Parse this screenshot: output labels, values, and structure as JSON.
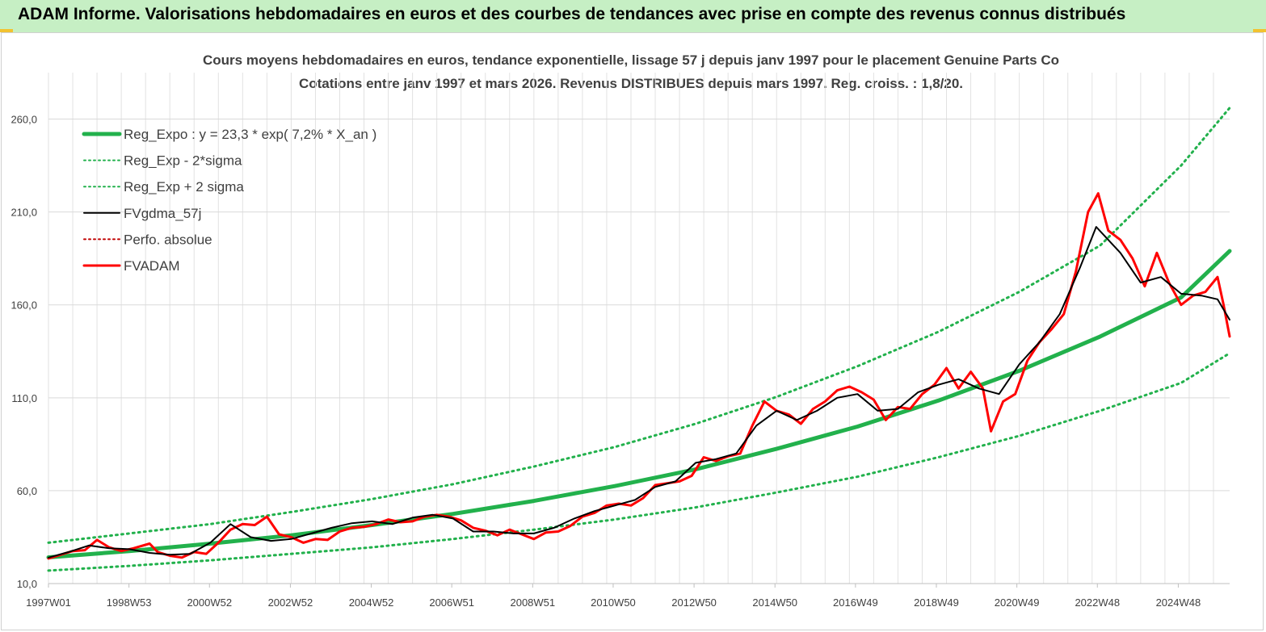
{
  "banner": {
    "title": "ADAM Informe. Valorisations hebdomadaires en euros et des courbes de tendances avec prise en compte des revenus connus distribués"
  },
  "chart_data": {
    "type": "line",
    "title": "Cours moyens hebdomadaires en euros, tendance exponentielle, lissage 57 j depuis janv 1997 pour le placement Genuine Parts Co",
    "subtitle": "Cotations entre janv 1997 et mars 2026. Revenus DISTRIBUES depuis mars 1997. Reg. croiss. : 1,8/20.",
    "x_range": [
      1997.0,
      2026.2
    ],
    "ylim": [
      10,
      285
    ],
    "y_ticks": [
      10,
      60,
      110,
      160,
      210,
      260
    ],
    "y_tick_labels": [
      "10,0",
      "60,0",
      "110,0",
      "160,0",
      "210,0",
      "260,0"
    ],
    "x_ticks": [
      {
        "x": 1997.0,
        "label": "1997W01"
      },
      {
        "x": 1998.99,
        "label": "1998W53"
      },
      {
        "x": 2000.98,
        "label": "2000W52"
      },
      {
        "x": 2002.98,
        "label": "2002W52"
      },
      {
        "x": 2004.98,
        "label": "2004W52"
      },
      {
        "x": 2006.97,
        "label": "2006W51"
      },
      {
        "x": 2008.97,
        "label": "2008W51"
      },
      {
        "x": 2010.96,
        "label": "2010W50"
      },
      {
        "x": 2012.96,
        "label": "2012W50"
      },
      {
        "x": 2014.96,
        "label": "2014W50"
      },
      {
        "x": 2016.95,
        "label": "2016W49"
      },
      {
        "x": 2018.95,
        "label": "2018W49"
      },
      {
        "x": 2020.94,
        "label": "2020W49"
      },
      {
        "x": 2022.93,
        "label": "2022W48"
      },
      {
        "x": 2024.93,
        "label": "2024W48"
      }
    ],
    "grid": true,
    "legend_position": "top-left",
    "series": [
      {
        "name": "Reg_Expo : y = 23,3 * exp( 7,2% *  X_an )",
        "style": "thick-solid",
        "color": "#22b14c",
        "points": [
          [
            1997.0,
            24.1
          ],
          [
            1999.0,
            27.5
          ],
          [
            2001.0,
            31.5
          ],
          [
            2003.0,
            36.0
          ],
          [
            2005.0,
            41.5
          ],
          [
            2007.0,
            47.5
          ],
          [
            2009.0,
            54.5
          ],
          [
            2011.0,
            62.5
          ],
          [
            2013.0,
            71.5
          ],
          [
            2015.0,
            82.5
          ],
          [
            2017.0,
            94.5
          ],
          [
            2019.0,
            108.5
          ],
          [
            2021.0,
            124.5
          ],
          [
            2023.0,
            143.0
          ],
          [
            2025.0,
            164.0
          ],
          [
            2026.2,
            189.0
          ]
        ]
      },
      {
        "name": "Reg_Exp - 2*sigma",
        "style": "dotted",
        "color": "#22b14c",
        "points": [
          [
            1997.0,
            17.0
          ],
          [
            1999.0,
            19.5
          ],
          [
            2001.0,
            22.5
          ],
          [
            2003.0,
            26.0
          ],
          [
            2005.0,
            29.5
          ],
          [
            2007.0,
            34.0
          ],
          [
            2009.0,
            39.0
          ],
          [
            2011.0,
            44.5
          ],
          [
            2013.0,
            51.0
          ],
          [
            2015.0,
            59.0
          ],
          [
            2017.0,
            67.5
          ],
          [
            2019.0,
            78.0
          ],
          [
            2021.0,
            89.5
          ],
          [
            2023.0,
            103.0
          ],
          [
            2025.0,
            118.0
          ],
          [
            2026.2,
            134.0
          ]
        ]
      },
      {
        "name": "Reg_Exp + 2 sigma",
        "style": "dotted",
        "color": "#22b14c",
        "points": [
          [
            1997.0,
            32.0
          ],
          [
            1999.0,
            37.0
          ],
          [
            2001.0,
            42.0
          ],
          [
            2003.0,
            48.5
          ],
          [
            2005.0,
            55.5
          ],
          [
            2007.0,
            63.5
          ],
          [
            2009.0,
            73.0
          ],
          [
            2011.0,
            83.5
          ],
          [
            2013.0,
            96.0
          ],
          [
            2015.0,
            110.5
          ],
          [
            2017.0,
            127.0
          ],
          [
            2019.0,
            145.5
          ],
          [
            2021.0,
            167.0
          ],
          [
            2023.0,
            192.0
          ],
          [
            2025.0,
            235.0
          ],
          [
            2026.2,
            266.0
          ]
        ]
      },
      {
        "name": "FVgdma_57j",
        "style": "solid",
        "color": "#000000",
        "points": [
          [
            1997.0,
            24.0
          ],
          [
            1997.5,
            27.0
          ],
          [
            1998.0,
            30.5
          ],
          [
            1998.5,
            29.0
          ],
          [
            1999.0,
            28.5
          ],
          [
            1999.5,
            26.5
          ],
          [
            2000.0,
            25.5
          ],
          [
            2000.5,
            26.0
          ],
          [
            2001.0,
            32.0
          ],
          [
            2001.5,
            42.0
          ],
          [
            2002.0,
            35.0
          ],
          [
            2002.5,
            33.0
          ],
          [
            2003.0,
            34.0
          ],
          [
            2003.5,
            37.0
          ],
          [
            2004.0,
            40.0
          ],
          [
            2004.5,
            42.5
          ],
          [
            2005.0,
            43.5
          ],
          [
            2005.5,
            42.0
          ],
          [
            2006.0,
            45.5
          ],
          [
            2006.5,
            47.0
          ],
          [
            2007.0,
            45.0
          ],
          [
            2007.5,
            38.0
          ],
          [
            2008.0,
            38.0
          ],
          [
            2008.5,
            37.0
          ],
          [
            2009.0,
            37.0
          ],
          [
            2009.5,
            40.0
          ],
          [
            2010.0,
            45.0
          ],
          [
            2010.5,
            49.0
          ],
          [
            2011.0,
            52.0
          ],
          [
            2011.5,
            55.0
          ],
          [
            2012.0,
            62.0
          ],
          [
            2012.5,
            65.0
          ],
          [
            2013.0,
            75.0
          ],
          [
            2013.5,
            77.0
          ],
          [
            2014.0,
            80.0
          ],
          [
            2014.5,
            95.0
          ],
          [
            2015.0,
            103.0
          ],
          [
            2015.5,
            98.0
          ],
          [
            2016.0,
            103.0
          ],
          [
            2016.5,
            110.0
          ],
          [
            2017.0,
            112.0
          ],
          [
            2017.5,
            103.0
          ],
          [
            2018.0,
            104.0
          ],
          [
            2018.5,
            113.0
          ],
          [
            2019.0,
            117.0
          ],
          [
            2019.5,
            120.0
          ],
          [
            2020.0,
            115.0
          ],
          [
            2020.5,
            112.0
          ],
          [
            2021.0,
            128.0
          ],
          [
            2021.5,
            140.0
          ],
          [
            2022.0,
            155.0
          ],
          [
            2022.5,
            180.0
          ],
          [
            2022.9,
            202.0
          ],
          [
            2023.5,
            188.0
          ],
          [
            2024.0,
            172.0
          ],
          [
            2024.5,
            175.0
          ],
          [
            2025.0,
            166.0
          ],
          [
            2025.5,
            165.0
          ],
          [
            2025.9,
            163.0
          ],
          [
            2026.2,
            152.0
          ]
        ]
      },
      {
        "name": "Perfo. absolue",
        "style": "dotted",
        "color": "#c00000",
        "points": []
      },
      {
        "name": "FVADAM",
        "style": "thick-solid",
        "color": "#ff0000",
        "points": [
          [
            1997.0,
            23.5
          ],
          [
            1997.3,
            25.5
          ],
          [
            1997.6,
            27.5
          ],
          [
            1997.9,
            28.0
          ],
          [
            1998.2,
            33.5
          ],
          [
            1998.5,
            29.5
          ],
          [
            1998.8,
            27.5
          ],
          [
            1999.1,
            29.0
          ],
          [
            1999.5,
            31.5
          ],
          [
            1999.7,
            27.0
          ],
          [
            2000.0,
            25.0
          ],
          [
            2000.3,
            24.0
          ],
          [
            2000.6,
            27.0
          ],
          [
            2000.9,
            26.0
          ],
          [
            2001.2,
            32.0
          ],
          [
            2001.5,
            39.0
          ],
          [
            2001.8,
            42.0
          ],
          [
            2002.1,
            41.5
          ],
          [
            2002.4,
            46.0
          ],
          [
            2002.7,
            36.5
          ],
          [
            2003.0,
            35.0
          ],
          [
            2003.3,
            32.0
          ],
          [
            2003.6,
            34.0
          ],
          [
            2003.9,
            33.5
          ],
          [
            2004.2,
            38.0
          ],
          [
            2004.5,
            40.0
          ],
          [
            2004.8,
            40.5
          ],
          [
            2005.1,
            42.0
          ],
          [
            2005.4,
            44.5
          ],
          [
            2005.7,
            43.0
          ],
          [
            2006.0,
            43.5
          ],
          [
            2006.3,
            46.0
          ],
          [
            2006.6,
            47.0
          ],
          [
            2006.9,
            46.0
          ],
          [
            2007.2,
            44.0
          ],
          [
            2007.5,
            40.0
          ],
          [
            2007.8,
            38.5
          ],
          [
            2008.1,
            36.0
          ],
          [
            2008.4,
            39.0
          ],
          [
            2008.7,
            36.5
          ],
          [
            2009.0,
            34.0
          ],
          [
            2009.3,
            37.5
          ],
          [
            2009.6,
            38.0
          ],
          [
            2009.9,
            41.0
          ],
          [
            2010.2,
            46.0
          ],
          [
            2010.5,
            48.0
          ],
          [
            2010.8,
            52.0
          ],
          [
            2011.1,
            53.0
          ],
          [
            2011.4,
            52.0
          ],
          [
            2011.7,
            56.0
          ],
          [
            2012.0,
            63.0
          ],
          [
            2012.3,
            64.0
          ],
          [
            2012.6,
            65.0
          ],
          [
            2012.9,
            68.0
          ],
          [
            2013.2,
            78.0
          ],
          [
            2013.5,
            76.0
          ],
          [
            2013.8,
            78.5
          ],
          [
            2014.1,
            80.0
          ],
          [
            2014.4,
            95.0
          ],
          [
            2014.7,
            108.0
          ],
          [
            2015.0,
            103.0
          ],
          [
            2015.3,
            101.0
          ],
          [
            2015.6,
            96.0
          ],
          [
            2015.9,
            104.0
          ],
          [
            2016.2,
            108.0
          ],
          [
            2016.5,
            114.0
          ],
          [
            2016.8,
            116.0
          ],
          [
            2017.1,
            113.0
          ],
          [
            2017.4,
            109.0
          ],
          [
            2017.7,
            98.0
          ],
          [
            2018.0,
            105.0
          ],
          [
            2018.3,
            104.0
          ],
          [
            2018.6,
            112.0
          ],
          [
            2018.9,
            117.0
          ],
          [
            2019.2,
            126.0
          ],
          [
            2019.5,
            115.0
          ],
          [
            2019.8,
            124.0
          ],
          [
            2020.1,
            115.0
          ],
          [
            2020.3,
            92.0
          ],
          [
            2020.6,
            108.0
          ],
          [
            2020.9,
            112.0
          ],
          [
            2021.2,
            130.0
          ],
          [
            2021.5,
            140.0
          ],
          [
            2021.8,
            147.0
          ],
          [
            2022.1,
            155.0
          ],
          [
            2022.4,
            178.0
          ],
          [
            2022.7,
            210.0
          ],
          [
            2022.95,
            220.0
          ],
          [
            2023.2,
            200.0
          ],
          [
            2023.5,
            195.0
          ],
          [
            2023.8,
            185.0
          ],
          [
            2024.1,
            170.0
          ],
          [
            2024.4,
            188.0
          ],
          [
            2024.7,
            172.0
          ],
          [
            2025.0,
            160.0
          ],
          [
            2025.3,
            165.0
          ],
          [
            2025.6,
            167.0
          ],
          [
            2025.9,
            175.0
          ],
          [
            2026.05,
            160.0
          ],
          [
            2026.2,
            143.0
          ]
        ]
      }
    ]
  }
}
